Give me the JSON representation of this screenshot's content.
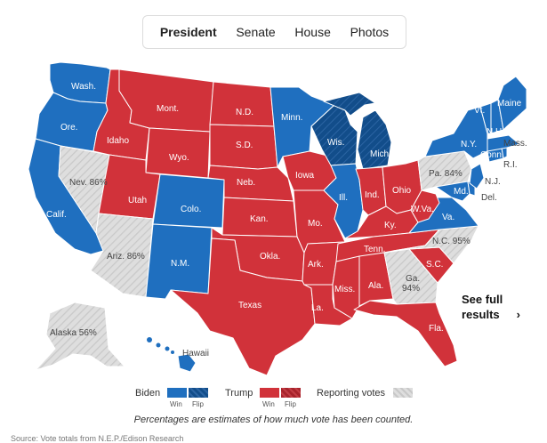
{
  "tabs": [
    {
      "label": "President",
      "active": true
    },
    {
      "label": "Senate",
      "active": false
    },
    {
      "label": "House",
      "active": false
    },
    {
      "label": "Photos",
      "active": false
    }
  ],
  "colors": {
    "biden": "#1f6fbf",
    "biden_flip": "#0f4f91",
    "trump": "#d1323a",
    "trump_flip": "#a7232b",
    "reporting": "#d9d9d9"
  },
  "states": {
    "wa": "Wash.",
    "or": "Ore.",
    "ca": "Calif.",
    "nv": "Nev. 86%",
    "id": "Idaho",
    "mt": "Mont.",
    "wy": "Wyo.",
    "ut": "Utah",
    "az": "Ariz. 86%",
    "co": "Colo.",
    "nm": "N.M.",
    "nd": "N.D.",
    "sd": "S.D.",
    "ne": "Neb.",
    "ks": "Kan.",
    "ok": "Okla.",
    "tx": "Texas",
    "mn": "Minn.",
    "ia": "Iowa",
    "mo": "Mo.",
    "ar": "Ark.",
    "la": "La.",
    "wi": "Wis.",
    "il": "Ill.",
    "mi": "Mich.",
    "in": "Ind.",
    "oh": "Ohio",
    "ky": "Ky.",
    "tn": "Tenn.",
    "ms": "Miss.",
    "al": "Ala.",
    "ga": "Ga.\n94%",
    "fl": "Fla.",
    "sc": "S.C.",
    "nc": "N.C. 95%",
    "va": "Va.",
    "wv": "W.Va.",
    "pa": "Pa. 84%",
    "ny": "N.Y.",
    "vt": "Vt.",
    "nh": "N.H.",
    "me": "Maine",
    "ma": "Mass.",
    "ct": "Conn.",
    "ri": "R.I.",
    "nj": "N.J.",
    "de": "Del.",
    "md": "Md.",
    "ak": "Alaska 56%",
    "hi": "Hawaii"
  },
  "see_full": "See full results",
  "see_full_arrow": "›",
  "legend": {
    "biden": "Biden",
    "trump": "Trump",
    "reporting": "Reporting votes",
    "win": "Win",
    "flip": "Flip"
  },
  "note": "Percentages are estimates of how much vote has been counted.",
  "source": "Source: Vote totals from N.E.P./Edison Research"
}
